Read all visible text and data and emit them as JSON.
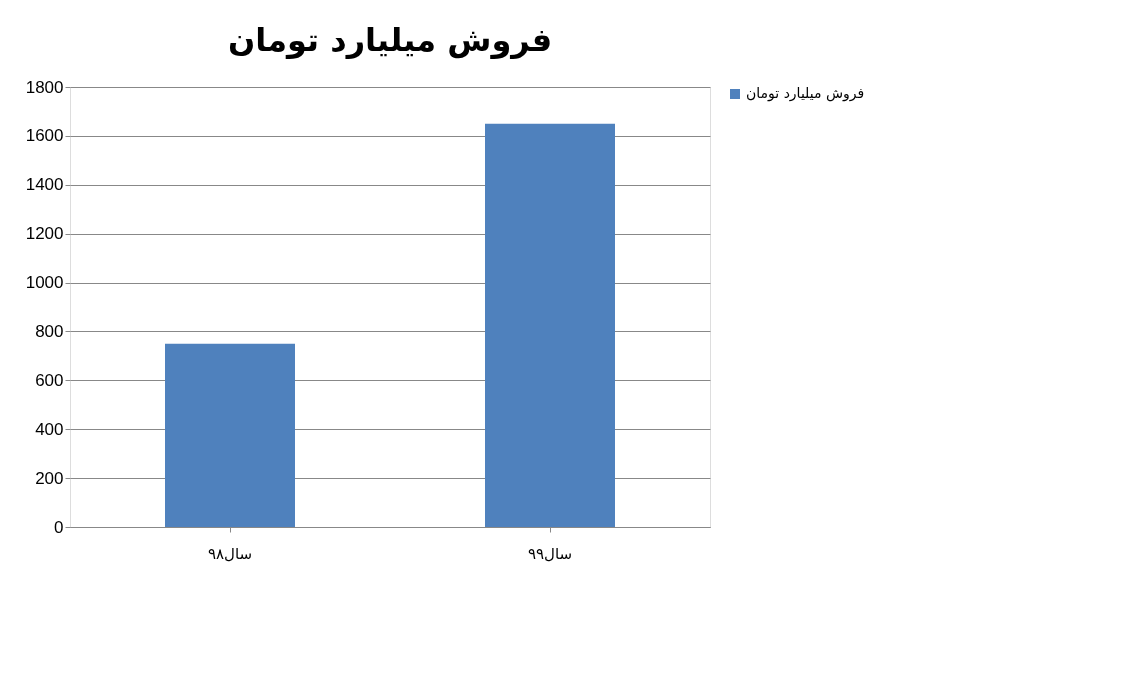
{
  "chart_data": {
    "type": "bar",
    "title": "فروش میلیارد تومان",
    "categories": [
      "سال۹۸",
      "سال۹۹"
    ],
    "series": [
      {
        "name": "فروش میلیارد تومان",
        "color": "#4f81bd",
        "values": [
          750,
          1650
        ]
      }
    ],
    "ylim": [
      0,
      1800
    ],
    "yticks": [
      0,
      200,
      400,
      600,
      800,
      1000,
      1200,
      1400,
      1600,
      1800
    ],
    "grid": "y",
    "legend": "right"
  }
}
